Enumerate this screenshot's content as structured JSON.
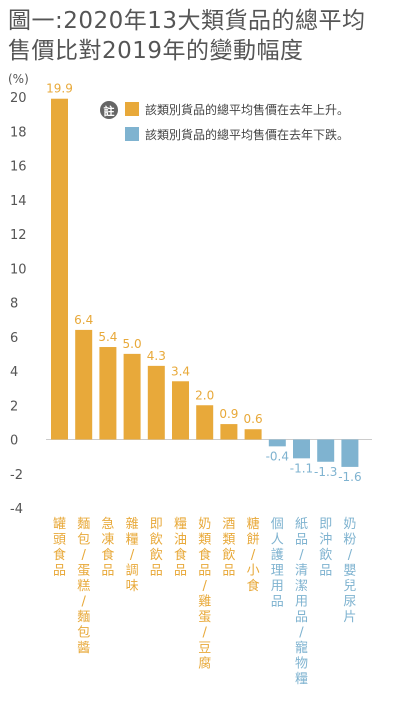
{
  "title_lines": [
    "圖一:2020年13大類貨品的總平均",
    "售價比對2019年的變動幅度"
  ],
  "legend": {
    "badge": "註",
    "items": [
      {
        "label": "該類別貨品的總平均售價在去年上升。",
        "color": "#E8A93A"
      },
      {
        "label": "該類別貨品的總平均售價在去年下跌。",
        "color": "#7FB3D0"
      }
    ]
  },
  "colors": {
    "up": "#E8A93A",
    "down": "#7FB3D0",
    "axis_text": "#555555",
    "grid": "#cccccc"
  },
  "chart_data": {
    "type": "bar",
    "ylabel": "(%)",
    "ylim": [
      -4,
      20
    ],
    "yticks": [
      20,
      18,
      16,
      14,
      12,
      10,
      8,
      6,
      4,
      2,
      0,
      -2,
      -4
    ],
    "categories": [
      "罐頭食品",
      "麵包/蛋糕/麵包醬",
      "急凍食品",
      "雜糧/調味",
      "即飲飲品",
      "糧油食品",
      "奶類食品/雞蛋/豆腐",
      "酒類飲品",
      "糖餅/小食",
      "個人護理用品",
      "紙品/清潔用品/寵物糧",
      "即沖飲品",
      "奶粉/嬰兒尿片"
    ],
    "values": [
      19.9,
      6.4,
      5.4,
      5.0,
      4.3,
      3.4,
      2.0,
      0.9,
      0.6,
      -0.4,
      -1.1,
      -1.3,
      -1.6
    ],
    "value_labels": [
      "19.9",
      "6.4",
      "5.4",
      "5.0",
      "4.3",
      "3.4",
      "2.0",
      "0.9",
      "0.6",
      "-0.4",
      "-1.1",
      "-1.3",
      "-1.6"
    ]
  }
}
